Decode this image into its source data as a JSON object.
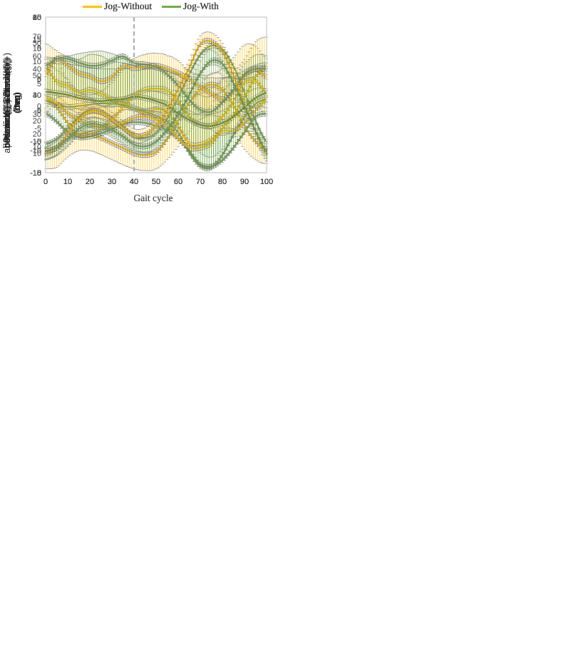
{
  "figure": {
    "xlabel": "Gait cycle",
    "colors": {
      "jog_without": "#FFC000",
      "jog_with": "#70AD47",
      "jog_with_dark": "#538135",
      "marker_gray": "#6F6F6F",
      "dashed_line": "#ABABAB",
      "axis_border": "#D9D9D9",
      "tick_text": "#404040"
    }
  },
  "chart_data": [
    {
      "id": "proximal-distal",
      "type": "line",
      "title_lines": [
        "Proximal(-)-Distal(+)",
        "(mm)"
      ],
      "xlabel": "Gait cycle",
      "xlim": [
        0,
        100
      ],
      "ylim": [
        0,
        60
      ],
      "xticks": [
        0,
        10,
        20,
        30,
        40,
        50,
        60,
        70,
        80,
        90,
        100
      ],
      "yticks": [
        0,
        10,
        20,
        30,
        40,
        50,
        60
      ],
      "dashed_x": 40,
      "x": [
        0,
        5,
        10,
        15,
        20,
        25,
        30,
        35,
        40,
        45,
        50,
        55,
        60,
        65,
        70,
        75,
        80,
        85,
        90,
        95,
        100
      ],
      "series": [
        {
          "name": "Jog-Without",
          "color": "#FFC000",
          "err_dir": "down",
          "values": [
            8.5,
            9.5,
            13,
            15,
            15,
            13.5,
            11.5,
            9.5,
            7.5,
            6.8,
            8,
            13,
            20,
            27,
            32,
            34,
            32,
            26,
            18,
            12,
            8.5
          ],
          "err": [
            7,
            7.5,
            7,
            6.5,
            6.5,
            6.5,
            6.5,
            6.5,
            6,
            6,
            6.5,
            8,
            10,
            11,
            11.5,
            12,
            11.5,
            11,
            9,
            7,
            5
          ]
        },
        {
          "name": "Jog-With",
          "color": "#70AD47",
          "err_dir": "down",
          "values": [
            11,
            13,
            17,
            21.5,
            24,
            23.5,
            21,
            17.5,
            14.5,
            13.5,
            15.5,
            21,
            29,
            38,
            45.5,
            49,
            47.5,
            41,
            31,
            20,
            12
          ],
          "err": [
            6,
            6.5,
            7,
            7,
            6.5,
            6.5,
            6.5,
            6,
            5.5,
            5.5,
            6,
            6,
            6.5,
            7,
            7,
            7.5,
            7.5,
            7,
            6.5,
            6,
            5.5
          ]
        }
      ]
    },
    {
      "id": "internal-external",
      "type": "line",
      "title_lines": [
        "Internal(-)-External(+)",
        "Deg"
      ],
      "xlabel": "Gait cycle",
      "xlim": [
        0,
        100
      ],
      "ylim": [
        -10,
        15
      ],
      "xticks": [
        0,
        10,
        20,
        30,
        40,
        50,
        60,
        70,
        80,
        90,
        100
      ],
      "yticks": [
        -10,
        -5,
        0,
        5,
        10,
        15
      ],
      "dashed_x": 40,
      "x": [
        0,
        5,
        10,
        15,
        20,
        25,
        30,
        35,
        40,
        45,
        50,
        55,
        60,
        65,
        70,
        75,
        80,
        85,
        90,
        95,
        100
      ],
      "series": [
        {
          "name": "Jog-Without",
          "color": "#FFC000",
          "err_dir": "up",
          "values": [
            2,
            0.5,
            -2,
            -4,
            -3.8,
            -3,
            -1.5,
            0.5,
            2.3,
            3.3,
            3.5,
            3.2,
            1.5,
            -1,
            -2.3,
            -2.5,
            -1,
            1.5,
            4.5,
            4.7,
            2.8
          ],
          "err": [
            5.5,
            6,
            7,
            7,
            6.3,
            6,
            6,
            6,
            6,
            5.7,
            5.7,
            5.6,
            6.5,
            7.3,
            8.1,
            8.3,
            7.8,
            7,
            6,
            5.6,
            5.5
          ]
        },
        {
          "name": "Jog-With",
          "color": "#70AD47",
          "err_dir": "up",
          "values": [
            -0.5,
            -1.8,
            -3.5,
            -4.3,
            -4.2,
            -3.7,
            -3,
            -2.2,
            -1.9,
            -2,
            -2.5,
            -3.2,
            -4.5,
            -6.5,
            -8.7,
            -9,
            -8,
            -6,
            -3.5,
            -1,
            -0.5
          ],
          "err": [
            4,
            4.3,
            4.5,
            4.5,
            4.5,
            4.2,
            4,
            3.8,
            3.9,
            4,
            4.3,
            4.7,
            5.5,
            6.5,
            8,
            8.5,
            8,
            7,
            6,
            4.5,
            4
          ]
        }
      ]
    },
    {
      "id": "posterior-anterior",
      "type": "line",
      "title_lines": [
        "posterior(-)-Anterior(+)",
        "(mm)"
      ],
      "xlabel": "Gait cycle",
      "xlim": [
        0,
        100
      ],
      "ylim": [
        -15,
        20
      ],
      "xticks": [
        0,
        10,
        20,
        30,
        40,
        50,
        60,
        70,
        80,
        90,
        100
      ],
      "yticks": [
        -15,
        -10,
        -5,
        0,
        5,
        10,
        15,
        20
      ],
      "dashed_x": 40,
      "x": [
        0,
        5,
        10,
        15,
        20,
        25,
        30,
        35,
        40,
        45,
        50,
        55,
        60,
        65,
        70,
        75,
        80,
        85,
        90,
        95,
        100
      ],
      "series": [
        {
          "name": "Jog-Without",
          "color": "#FFC000",
          "err_dir": "up",
          "values": [
            8.5,
            5.5,
            4.5,
            3,
            3.6,
            2.8,
            1.5,
            0.7,
            -0.5,
            -1.5,
            -0.7,
            -1.5,
            -4.5,
            -8.5,
            -8.7,
            -7.5,
            -5,
            -2,
            2,
            6.5,
            9
          ],
          "err": [
            5.5,
            7,
            6.5,
            7.5,
            8,
            8.5,
            8.5,
            9,
            9.5,
            10,
            9.5,
            9.5,
            10,
            11,
            11.5,
            11.5,
            11,
            9.5,
            8.5,
            8,
            6.5
          ]
        },
        {
          "name": "Jog-With",
          "color": "#70AD47",
          "err_dir": "up",
          "values": [
            1.2,
            0.3,
            -0.2,
            0,
            0.3,
            0.6,
            0.5,
            0.3,
            -0.5,
            -1.3,
            -2.2,
            -3.5,
            -6,
            -10.5,
            -13.5,
            -13.8,
            -11,
            -6.5,
            -2.5,
            0.5,
            1.5
          ],
          "err": [
            9.8,
            10.5,
            11.5,
            11.8,
            11.9,
            11.8,
            11.3,
            10.5,
            10.3,
            10.6,
            11,
            11.8,
            13,
            14.5,
            16,
            16.1,
            14.5,
            12.5,
            12,
            11,
            9.8
          ]
        }
      ]
    },
    {
      "id": "abduction-adduction",
      "type": "line",
      "title_lines": [
        "abduction(-)-adduction(+)",
        "Deg"
      ],
      "xlabel": "Gait cycle",
      "xlim": [
        0,
        100
      ],
      "ylim": [
        -15,
        10
      ],
      "xticks": [
        0,
        10,
        20,
        30,
        40,
        50,
        60,
        70,
        80,
        90,
        100
      ],
      "yticks": [
        -15,
        -10,
        -5,
        0,
        5,
        10
      ],
      "dashed_x": 40,
      "x": [
        0,
        5,
        10,
        15,
        20,
        25,
        30,
        35,
        40,
        45,
        50,
        55,
        60,
        65,
        70,
        75,
        80,
        85,
        90,
        95,
        100
      ],
      "series": [
        {
          "name": "Jog-Without",
          "color": "#FFC000",
          "err_dir": "up",
          "values": [
            -3,
            -3.8,
            -5.5,
            -6.5,
            -7.3,
            -7.7,
            -7.5,
            -7,
            -6.2,
            -6,
            -6.5,
            -7.5,
            -9.5,
            -11,
            -11,
            -10.3,
            -8.3,
            -8.3,
            -7,
            -5,
            -3.3
          ],
          "err": [
            6.2,
            7,
            5,
            4.5,
            4.3,
            4.2,
            4.1,
            4,
            4,
            4.2,
            4.5,
            5,
            5.5,
            5.5,
            5.5,
            6,
            8.5,
            8.5,
            7,
            5.5,
            5
          ]
        },
        {
          "name": "Jog-With",
          "color": "#538135",
          "err_dir": "up",
          "values": [
            -2,
            -2.2,
            -2.5,
            -3,
            -3.3,
            -3.5,
            -3.3,
            -3.2,
            -2.8,
            -3,
            -3.5,
            -4.2,
            -5.5,
            -6.5,
            -7.3,
            -7.5,
            -7,
            -6,
            -4.5,
            -3,
            -2.2
          ],
          "err": [
            4.5,
            4.7,
            5,
            5.2,
            5.2,
            5.2,
            5,
            4.9,
            4.6,
            4.7,
            5,
            5.5,
            6.3,
            7,
            7.6,
            7.8,
            7.3,
            6.4,
            6,
            5.3,
            4.9
          ]
        }
      ]
    },
    {
      "id": "medial-lateral",
      "type": "line",
      "title_lines": [
        "Medial(-)-Lateral(+)",
        "(mm)"
      ],
      "xlabel": "Gait cycle",
      "xlim": [
        0,
        100
      ],
      "ylim": [
        -15,
        10
      ],
      "xticks": [
        0,
        10,
        20,
        30,
        40,
        50,
        60,
        70,
        80,
        90,
        100
      ],
      "yticks": [
        -15,
        -10,
        -5,
        0,
        5,
        10
      ],
      "dashed_x": 40,
      "x": [
        0,
        5,
        10,
        15,
        20,
        25,
        30,
        35,
        40,
        45,
        50,
        55,
        60,
        65,
        70,
        75,
        80,
        85,
        90,
        95,
        100
      ],
      "series": [
        {
          "name": "Jog-Without",
          "color": "#FFC000",
          "err_dir": "down",
          "values": [
            0.8,
            3.3,
            2.2,
            1,
            0.5,
            -0.3,
            0.3,
            2.1,
            1.8,
            2,
            2.2,
            1.7,
            1,
            0,
            -1.2,
            -2.3,
            -3.2,
            -2,
            0.5,
            1.6,
            0.4
          ],
          "err": [
            6.1,
            7.3,
            6.7,
            6.5,
            7,
            7.2,
            6.3,
            7.1,
            6.8,
            6.7,
            6.8,
            6.7,
            6.5,
            6.5,
            6,
            5.7,
            5.8,
            6,
            6.1,
            6.1,
            6
          ]
        },
        {
          "name": "Jog-With",
          "color": "#70AD47",
          "err_dir": "down",
          "values": [
            2.2,
            3.3,
            3.3,
            2.7,
            2.2,
            2.3,
            3,
            3.7,
            2.6,
            2.4,
            2,
            0.8,
            -1,
            -3.3,
            -4.9,
            -5.2,
            -3.7,
            -1.7,
            0.8,
            1.7,
            1.7
          ],
          "err": [
            6.8,
            6.3,
            6.1,
            5.3,
            5.4,
            6.6,
            7.5,
            8,
            7.5,
            7.4,
            7.2,
            7.1,
            6.8,
            6.4,
            6.9,
            7.3,
            7.6,
            7.1,
            6,
            6,
            6.3
          ]
        }
      ]
    },
    {
      "id": "extension-flexion",
      "type": "line",
      "title_lines": [
        "Extension(-)- Flexion(+)",
        "Deg"
      ],
      "xlabel": "Gait cycle",
      "xlim": [
        0,
        100
      ],
      "ylim": [
        0,
        80
      ],
      "xticks": [
        0,
        10,
        20,
        30,
        40,
        50,
        60,
        70,
        80,
        90,
        100
      ],
      "yticks": [
        0,
        10,
        20,
        30,
        40,
        50,
        60,
        70,
        80
      ],
      "dashed_x": 40,
      "x": [
        0,
        5,
        10,
        15,
        20,
        25,
        30,
        35,
        40,
        45,
        50,
        55,
        60,
        65,
        70,
        75,
        80,
        85,
        90,
        95,
        100
      ],
      "series": [
        {
          "name": "Jog-Without",
          "color": "#FFC000",
          "err_dir": "both",
          "values": [
            10,
            13,
            20,
            27.5,
            31.5,
            31,
            27.5,
            23,
            19,
            19.5,
            24,
            32,
            43,
            54,
            66,
            67.5,
            62,
            50,
            35,
            21,
            10.5
          ],
          "err": [
            3,
            3.5,
            3.5,
            3.5,
            3.5,
            3.5,
            3.5,
            3.5,
            3.5,
            3.5,
            4,
            4,
            4,
            4,
            4.5,
            4.5,
            4.5,
            4,
            4,
            3.5,
            3
          ]
        },
        {
          "name": "Jog-With",
          "color": "#70AD47",
          "err_dir": "both",
          "values": [
            11,
            13,
            17.5,
            22.5,
            25,
            24.5,
            22,
            18.5,
            14.5,
            13.5,
            16,
            22,
            30,
            40,
            51,
            57.5,
            56,
            46,
            34,
            21.5,
            11
          ],
          "err": [
            4.5,
            4,
            3.5,
            3.5,
            3.5,
            3.5,
            4,
            4,
            4,
            4,
            4,
            4.5,
            5,
            5.5,
            6.5,
            6.5,
            6,
            5.5,
            5,
            5.5,
            5
          ]
        }
      ]
    }
  ]
}
